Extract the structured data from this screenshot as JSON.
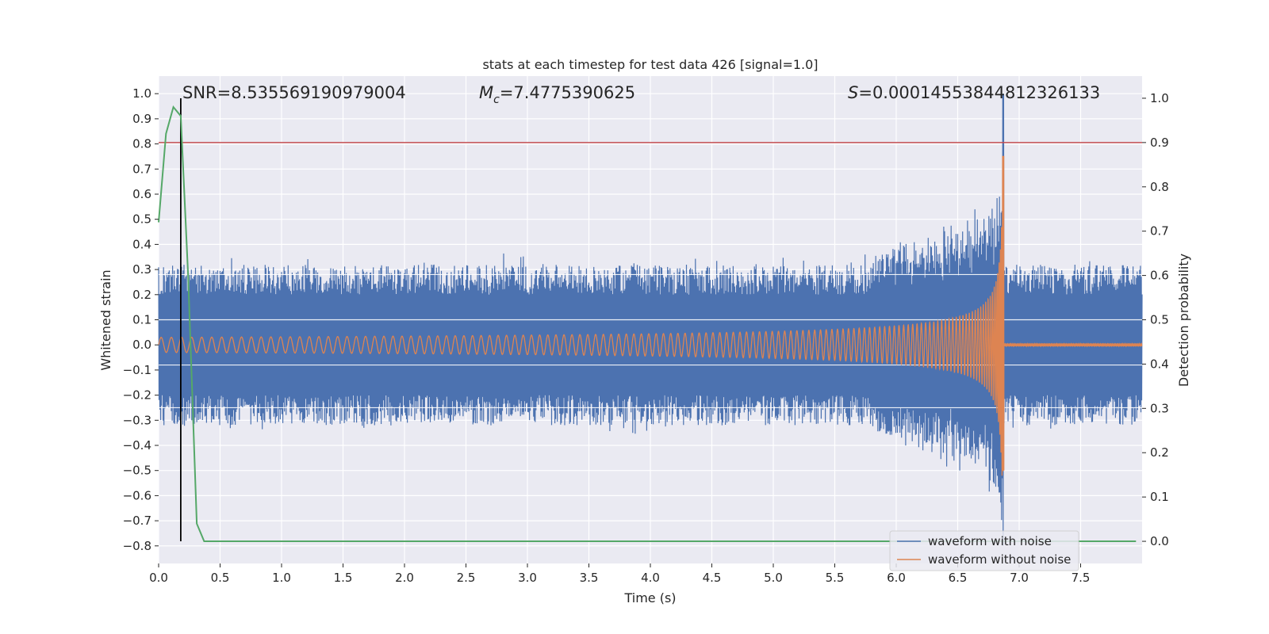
{
  "chart_data": {
    "type": "line",
    "title": "stats at each timestep for test data 426 [signal=1.0]",
    "xlabel": "Time (s)",
    "ylabel": "Whitened strain",
    "y2label": "Detection probability",
    "xlim": [
      0,
      8.0
    ],
    "ylim": [
      -0.87,
      1.07
    ],
    "y2lim": [
      -0.05,
      1.05
    ],
    "x_ticks": [
      "0.0",
      "0.5",
      "1.0",
      "1.5",
      "2.0",
      "2.5",
      "3.0",
      "3.5",
      "4.0",
      "4.5",
      "5.0",
      "5.5",
      "6.0",
      "6.5",
      "7.0",
      "7.5"
    ],
    "y_ticks": [
      "1.0",
      "0.9",
      "0.8",
      "0.7",
      "0.6",
      "0.5",
      "0.4",
      "0.3",
      "0.2",
      "0.1",
      "0.0",
      "−0.1",
      "−0.2",
      "−0.3",
      "−0.4",
      "−0.5",
      "−0.6",
      "−0.7",
      "−0.8"
    ],
    "y2_ticks": [
      "1.0",
      "0.9",
      "0.8",
      "0.7",
      "0.6",
      "0.5",
      "0.4",
      "0.3",
      "0.2",
      "0.1",
      "0.0"
    ],
    "grid": true,
    "legend_position": "lower right",
    "annotations": {
      "snr": "SNR=8.535569190979004",
      "mc_symbol": "M",
      "mc_sub": "c",
      "mc_value": "=7.4775390625",
      "s_symbol": "S",
      "s_value": "=0.00014553844812326133"
    },
    "series": [
      {
        "name": "waveform with noise",
        "color": "#4c72b0",
        "description_envelope": {
          "noise_amplitude": 0.3,
          "merger_time": 6.87,
          "peak_max": 1.0,
          "peak_min": -0.8
        }
      },
      {
        "name": "waveform without noise",
        "color": "#dd8452",
        "description_envelope": {
          "start_amplitude": 0.03,
          "merger_time": 6.87,
          "peak_max": 0.75,
          "peak_min": -0.5
        }
      },
      {
        "axis": "right",
        "color": "#55a868",
        "x": [
          0.0,
          0.06,
          0.12,
          0.18,
          0.24,
          0.31,
          0.37,
          0.43,
          7.95
        ],
        "y": [
          0.72,
          0.92,
          0.98,
          0.96,
          0.6,
          0.04,
          0.0,
          0.0,
          0.0
        ]
      }
    ],
    "hlines": [
      {
        "axis": "right",
        "y": 0.9,
        "color": "#c44e52"
      }
    ],
    "vlines": [
      {
        "x": 0.18,
        "color": "#000000",
        "ymin_axis": "right",
        "ymin": 0.0,
        "ymax": 1.0
      }
    ]
  }
}
